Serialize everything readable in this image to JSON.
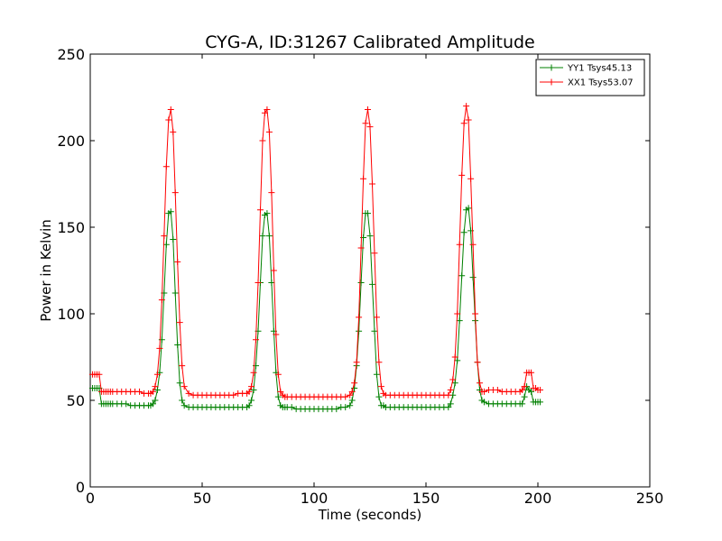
{
  "chart_data": {
    "type": "line",
    "title": "CYG-A, ID:31267 Calibrated Amplitude",
    "xlabel": "Time (seconds)",
    "ylabel": "Power in Kelvin",
    "xlim": [
      0,
      250
    ],
    "ylim": [
      0,
      250
    ],
    "xticks": [
      "0",
      "50",
      "100",
      "150",
      "200",
      "250"
    ],
    "yticks": [
      "0",
      "50",
      "100",
      "150",
      "200",
      "250"
    ],
    "grid": false,
    "legend_position": "top-right",
    "marker": "+",
    "series": [
      {
        "name": "YY1 Tsys45.13",
        "color": "#008000",
        "x": [
          1,
          2,
          3,
          4,
          5,
          6,
          7,
          8,
          9,
          10,
          12,
          14,
          16,
          18,
          20,
          22,
          24,
          26,
          27,
          28,
          29,
          30,
          31,
          32,
          33,
          34,
          35,
          36,
          37,
          38,
          39,
          40,
          41,
          42,
          44,
          46,
          48,
          50,
          52,
          54,
          56,
          58,
          60,
          62,
          64,
          66,
          68,
          70,
          71,
          72,
          73,
          74,
          75,
          76,
          77,
          78,
          79,
          80,
          81,
          82,
          83,
          84,
          85,
          86,
          87,
          88,
          90,
          92,
          94,
          96,
          98,
          100,
          102,
          104,
          106,
          108,
          110,
          112,
          114,
          116,
          117,
          118,
          119,
          120,
          121,
          122,
          123,
          124,
          125,
          126,
          127,
          128,
          129,
          130,
          131,
          132,
          134,
          136,
          138,
          140,
          142,
          144,
          146,
          148,
          150,
          152,
          154,
          156,
          158,
          160,
          161,
          162,
          163,
          164,
          165,
          166,
          167,
          168,
          169,
          170,
          171,
          172,
          173,
          174,
          175,
          176,
          178,
          180,
          182,
          184,
          186,
          188,
          190,
          192,
          193,
          194,
          195,
          196,
          197,
          198,
          199,
          200,
          201
        ],
        "y": [
          57,
          57,
          57,
          57,
          48,
          48,
          48,
          48,
          48,
          48,
          48,
          48,
          48,
          47,
          47,
          47,
          47,
          47,
          47,
          48,
          50,
          56,
          66,
          85,
          112,
          140,
          158,
          159,
          143,
          112,
          82,
          60,
          50,
          47,
          46,
          46,
          46,
          46,
          46,
          46,
          46,
          46,
          46,
          46,
          46,
          46,
          46,
          46,
          47,
          50,
          56,
          70,
          90,
          118,
          145,
          157,
          158,
          145,
          118,
          90,
          66,
          52,
          47,
          46,
          46,
          46,
          46,
          45,
          45,
          45,
          45,
          45,
          45,
          45,
          45,
          45,
          45,
          46,
          46,
          47,
          50,
          57,
          70,
          90,
          118,
          144,
          158,
          158,
          145,
          117,
          90,
          65,
          52,
          47,
          47,
          46,
          46,
          46,
          46,
          46,
          46,
          46,
          46,
          46,
          46,
          46,
          46,
          46,
          46,
          46,
          48,
          53,
          60,
          73,
          96,
          122,
          147,
          160,
          161,
          148,
          121,
          96,
          72,
          56,
          50,
          49,
          48,
          48,
          48,
          48,
          48,
          48,
          48,
          48,
          48,
          52,
          58,
          56,
          55,
          49,
          49,
          49,
          49
        ]
      },
      {
        "name": "XX1 Tsys53.07",
        "color": "#ff0000",
        "x": [
          1,
          2,
          3,
          4,
          5,
          6,
          7,
          8,
          9,
          10,
          12,
          14,
          16,
          18,
          20,
          22,
          24,
          26,
          27,
          28,
          29,
          30,
          31,
          32,
          33,
          34,
          35,
          36,
          37,
          38,
          39,
          40,
          41,
          42,
          44,
          46,
          48,
          50,
          52,
          54,
          56,
          58,
          60,
          62,
          64,
          66,
          68,
          70,
          71,
          72,
          73,
          74,
          75,
          76,
          77,
          78,
          79,
          80,
          81,
          82,
          83,
          84,
          85,
          86,
          87,
          88,
          90,
          92,
          94,
          96,
          98,
          100,
          102,
          104,
          106,
          108,
          110,
          112,
          114,
          116,
          117,
          118,
          119,
          120,
          121,
          122,
          123,
          124,
          125,
          126,
          127,
          128,
          129,
          130,
          131,
          132,
          134,
          136,
          138,
          140,
          142,
          144,
          146,
          148,
          150,
          152,
          154,
          156,
          158,
          160,
          161,
          162,
          163,
          164,
          165,
          166,
          167,
          168,
          169,
          170,
          171,
          172,
          173,
          174,
          175,
          176,
          178,
          180,
          182,
          184,
          186,
          188,
          190,
          192,
          193,
          194,
          195,
          196,
          197,
          198,
          199,
          200,
          201
        ],
        "y": [
          65,
          65,
          65,
          65,
          55,
          55,
          55,
          55,
          55,
          55,
          55,
          55,
          55,
          55,
          55,
          55,
          54,
          54,
          54,
          55,
          58,
          65,
          80,
          108,
          145,
          185,
          212,
          218,
          205,
          170,
          130,
          95,
          70,
          58,
          54,
          53,
          53,
          53,
          53,
          53,
          53,
          53,
          53,
          53,
          53,
          54,
          54,
          54,
          55,
          58,
          66,
          85,
          118,
          160,
          200,
          216,
          218,
          205,
          170,
          125,
          88,
          65,
          55,
          53,
          52,
          52,
          52,
          52,
          52,
          52,
          52,
          52,
          52,
          52,
          52,
          52,
          52,
          52,
          52,
          53,
          55,
          60,
          72,
          98,
          138,
          178,
          210,
          218,
          208,
          175,
          135,
          98,
          72,
          58,
          54,
          53,
          53,
          53,
          53,
          53,
          53,
          53,
          53,
          53,
          53,
          53,
          53,
          53,
          53,
          53,
          56,
          62,
          75,
          100,
          140,
          180,
          210,
          220,
          212,
          178,
          140,
          100,
          72,
          60,
          55,
          55,
          56,
          56,
          56,
          55,
          55,
          55,
          55,
          55,
          56,
          58,
          66,
          66,
          66,
          57,
          57,
          56,
          56
        ]
      }
    ]
  }
}
